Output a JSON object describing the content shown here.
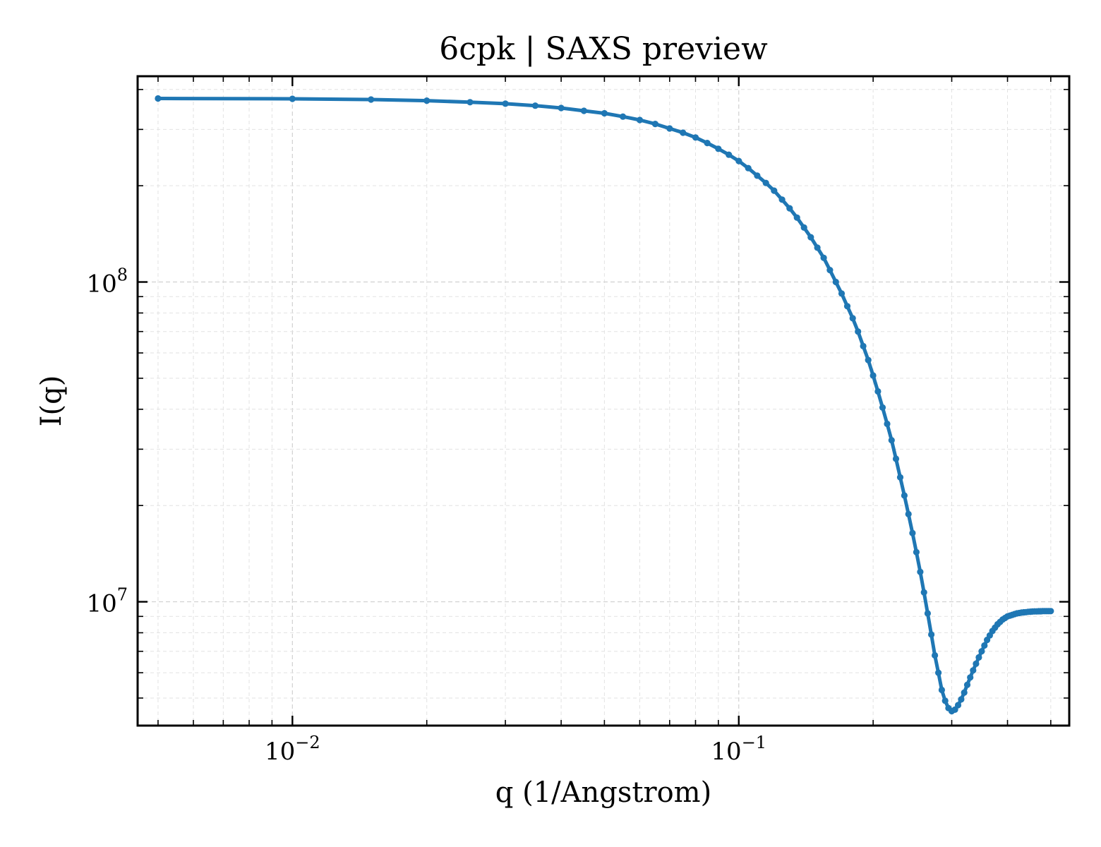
{
  "chart_data": {
    "type": "line",
    "title": "6cpk | SAXS preview",
    "xlabel": "q (1/Angstrom)",
    "ylabel": "I(q)",
    "xscale": "log",
    "yscale": "log",
    "xlim": [
      0.0045,
      0.55
    ],
    "ylim": [
      4100000.0,
      440000000.0
    ],
    "grid": true,
    "legend": "none",
    "x_ticks": [
      {
        "value": 0.01,
        "base": "10",
        "exp": "−2"
      },
      {
        "value": 0.1,
        "base": "10",
        "exp": "−1"
      }
    ],
    "y_ticks": [
      {
        "value": 10000000,
        "base": "10",
        "exp": "7"
      },
      {
        "value": 100000000,
        "base": "10",
        "exp": "8"
      }
    ],
    "series": [
      {
        "color": "#1f77b4",
        "marker": "circle",
        "x": [
          0.005,
          0.01,
          0.015,
          0.02,
          0.025,
          0.03,
          0.035,
          0.04,
          0.045,
          0.05,
          0.055,
          0.06,
          0.065,
          0.07,
          0.075,
          0.08,
          0.085,
          0.09,
          0.095,
          0.1,
          0.105,
          0.11,
          0.115,
          0.12,
          0.125,
          0.13,
          0.135,
          0.14,
          0.145,
          0.15,
          0.155,
          0.16,
          0.165,
          0.17,
          0.175,
          0.18,
          0.185,
          0.19,
          0.195,
          0.2,
          0.205,
          0.21,
          0.215,
          0.22,
          0.225,
          0.23,
          0.235,
          0.24,
          0.245,
          0.25,
          0.255,
          0.26,
          0.265,
          0.27,
          0.275,
          0.28,
          0.285,
          0.29,
          0.295,
          0.3,
          0.305,
          0.31,
          0.315,
          0.32,
          0.325,
          0.33,
          0.335,
          0.34,
          0.345,
          0.35,
          0.355,
          0.36,
          0.365,
          0.37,
          0.375,
          0.38,
          0.385,
          0.39,
          0.395,
          0.4,
          0.405,
          0.41,
          0.415,
          0.42,
          0.425,
          0.43,
          0.435,
          0.44,
          0.445,
          0.45,
          0.455,
          0.46,
          0.465,
          0.47,
          0.475,
          0.48,
          0.485,
          0.49,
          0.495,
          0.5
        ],
        "y": [
          375000000.0,
          374000000.0,
          372000000.0,
          369000000.0,
          365000000.0,
          361000000.0,
          356000000.0,
          350000000.0,
          343000000.0,
          337000000.0,
          329000000.0,
          321000000.0,
          312000000.0,
          302000000.0,
          293000000.0,
          283000000.0,
          272000000.0,
          261000000.0,
          250000000.0,
          239000000.0,
          227000000.0,
          215000000.0,
          204000000.0,
          193000000.0,
          181000000.0,
          170000000.0,
          159000000.0,
          148000000.0,
          138000000.0,
          128000000.0,
          119000000.0,
          109000000.0,
          100000000.0,
          92000000.0,
          84000000.0,
          77000000.0,
          70000000.0,
          63000000.0,
          57000000.0,
          51000000.0,
          45500000.0,
          40500000.0,
          36000000.0,
          32000000.0,
          28000000.0,
          24500000.0,
          21500000.0,
          18800000.0,
          16400000.0,
          14300000.0,
          12400000.0,
          10700000.0,
          9200000.0,
          7900000.0,
          6800000.0,
          6000000.0,
          5300000.0,
          4900000.0,
          4650000.0,
          4550000.0,
          4600000.0,
          4750000.0,
          4950000.0,
          5200000.0,
          5500000.0,
          5800000.0,
          6100000.0,
          6400000.0,
          6700000.0,
          7000000.0,
          7300000.0,
          7600000.0,
          7850000.0,
          8100000.0,
          8300000.0,
          8500000.0,
          8650000.0,
          8800000.0,
          8900000.0,
          9000000.0,
          9050000.0,
          9100000.0,
          9150000.0,
          9200000.0,
          9220000.0,
          9250000.0,
          9270000.0,
          9280000.0,
          9300000.0,
          9310000.0,
          9320000.0,
          9330000.0,
          9330000.0,
          9340000.0,
          9340000.0,
          9350000.0,
          9350000.0,
          9350000.0,
          9350000.0,
          9350000.0
        ]
      }
    ]
  }
}
